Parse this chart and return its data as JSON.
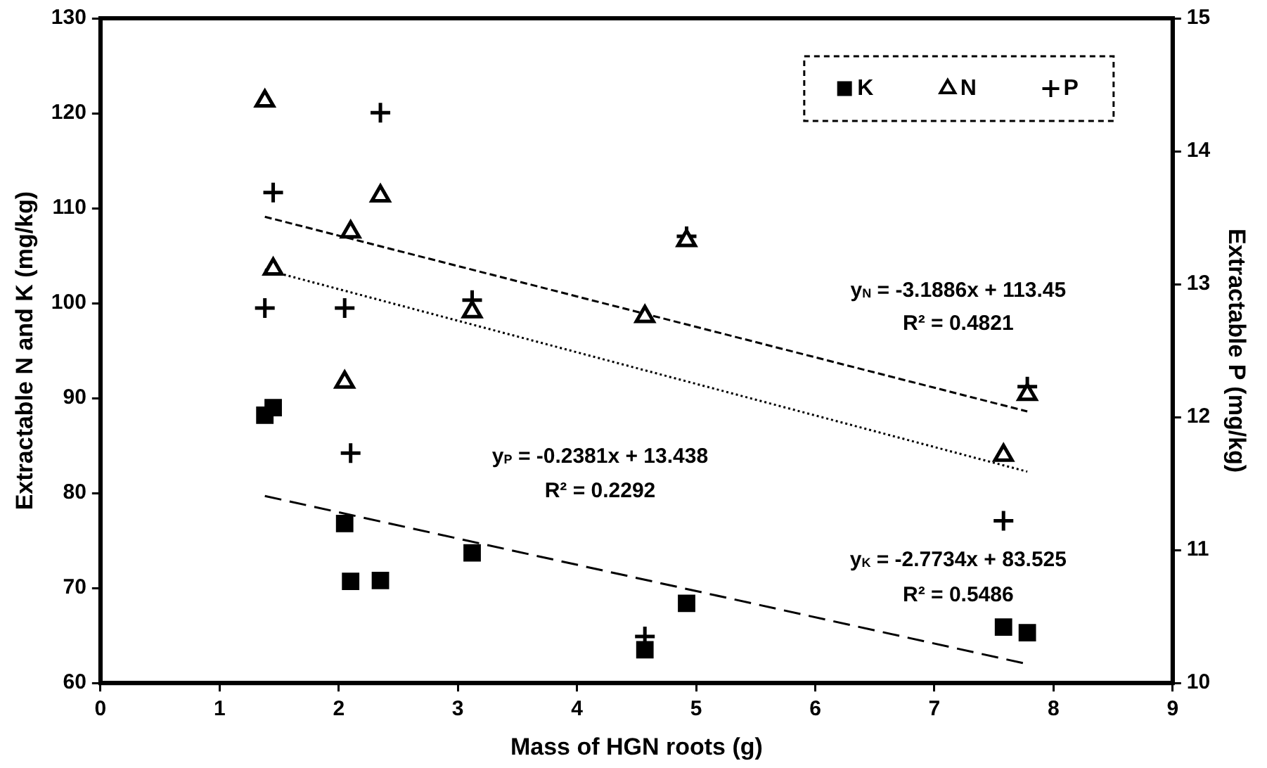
{
  "chart_data": {
    "type": "scatter",
    "xlabel": "Mass of HGN roots (g)",
    "ylabel": "Extractable N and K (mg/kg)",
    "y2label": "Extractable P (mg/kg)",
    "xlim": [
      0,
      9
    ],
    "xticks": [
      0,
      1,
      2,
      3,
      4,
      5,
      6,
      7,
      8,
      9
    ],
    "ylim": [
      60,
      130
    ],
    "yticks": [
      60,
      70,
      80,
      90,
      100,
      110,
      120,
      130
    ],
    "y2lim": [
      10,
      15
    ],
    "y2ticks": [
      10,
      11,
      12,
      13,
      14,
      15
    ],
    "grid": false,
    "legend": "top right",
    "series": [
      {
        "name": "K",
        "color": "#000000",
        "marker": "square",
        "x": [
          1.38,
          1.45,
          2.05,
          2.1,
          2.35,
          3.12,
          4.57,
          4.92,
          7.58,
          7.78
        ],
        "values": [
          88.2,
          89,
          76.8,
          70.7,
          70.8,
          73.7,
          63.5,
          68.4,
          65.9,
          65.3
        ]
      },
      {
        "name": "N",
        "color": "#000000",
        "marker": "triangle",
        "x": [
          1.38,
          1.45,
          2.05,
          2.1,
          2.35,
          3.12,
          4.57,
          4.92,
          7.58,
          7.78
        ],
        "values": [
          121.3,
          103.6,
          91.7,
          107.5,
          111.3,
          99.1,
          98.6,
          106.6,
          84,
          90.4
        ]
      },
      {
        "name": "P",
        "color": "#000000",
        "marker": "cross",
        "axis": "y2",
        "x": [
          1.38,
          1.45,
          2.05,
          2.1,
          2.35,
          3.12,
          4.57,
          4.92,
          7.58,
          7.78
        ],
        "values": [
          12.82,
          13.69,
          12.82,
          11.73,
          14.29,
          12.88,
          10.35,
          13.36,
          11.22,
          12.23
        ]
      },
      {
        "type": "line",
        "color": "#000000",
        "line_style": "dashed",
        "marker": "none",
        "x": [
          1.38,
          7.78
        ],
        "values": [
          109.1,
          88.6
        ]
      },
      {
        "type": "line",
        "color": "#000000",
        "line_style": "dotted",
        "marker": "none",
        "axis": "y2",
        "x": [
          1.38,
          7.78
        ],
        "values": [
          13.11,
          11.59
        ]
      },
      {
        "type": "line",
        "color": "#000000",
        "line_style": "dashed",
        "marker": "none",
        "x": [
          1.38,
          7.78
        ],
        "values": [
          79.7,
          62
        ]
      }
    ],
    "annotations": [
      "y$_{N}$ = -3.1886x + 113.45",
      "R² = 0.4821",
      "y$_{P}$ = -0.2381x + 13.438",
      "R² = 0.2292",
      "y$_{K}$ = -2.7734x + 83.525",
      "R² = 0.5486"
    ]
  }
}
